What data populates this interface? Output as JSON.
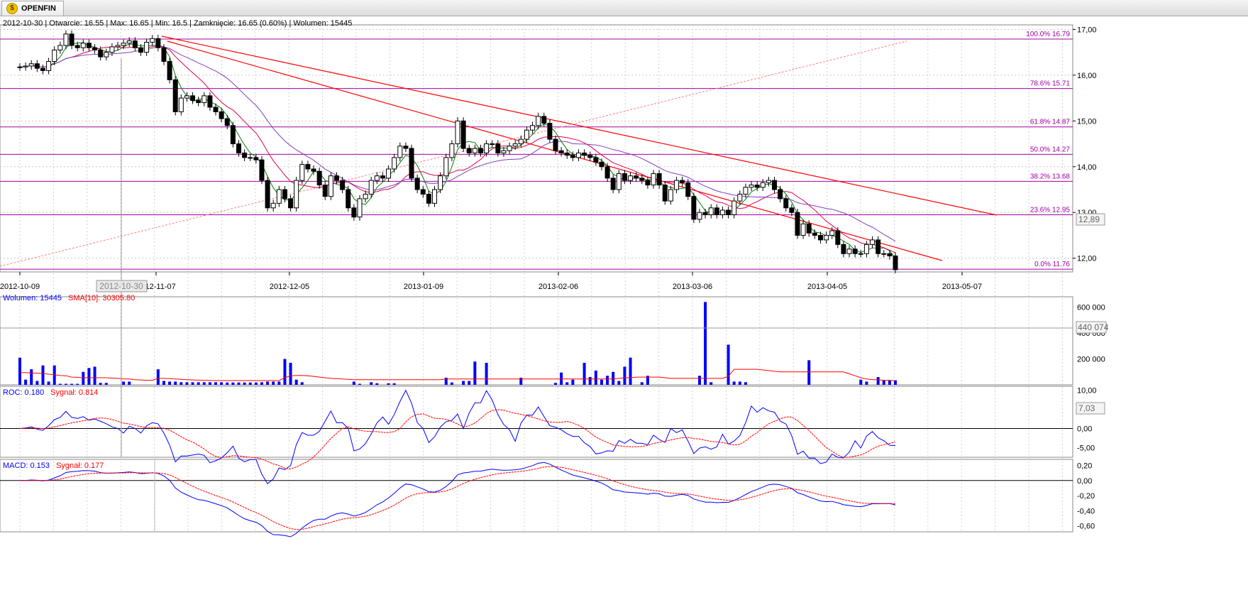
{
  "app": {
    "tab_title": "OPENFIN",
    "logo_icon": "coin-icon"
  },
  "header": {
    "date": "2012-10-30",
    "open": "Otwarcie: 16.55",
    "max": "Max: 16.65",
    "min": "Min: 16.5",
    "close": "Zamknięcie: 16.65 (0.60%)",
    "volume": "Wolumen: 15445"
  },
  "crosshair": {
    "x_label": "2012-10-30"
  },
  "colors": {
    "fib": "#a000a0",
    "trend": "#ff0000",
    "sma_short": "#008000",
    "sma_mid": "#e0004e",
    "sma_long": "#8040c0",
    "volume": "#0000ff",
    "volume_sma": "#ff0000",
    "roc": "#0000ff",
    "macd": "#0000ff",
    "signal": "#ff0000"
  },
  "chart_data": [
    {
      "type": "candlestick",
      "panel": "price",
      "ylim": [
        11.7,
        17.1
      ],
      "y_ticks": [
        "17,00",
        "16,00",
        "15,00",
        "14,00",
        "13,00",
        "12,00"
      ],
      "last_value_label": "12,89",
      "x_ticks": [
        "2012-10-09",
        "2012-11-07",
        "2012-12-05",
        "2013-01-09",
        "2013-02-06",
        "2013-03-06",
        "2013-04-05",
        "2013-05-07"
      ],
      "fibonacci": [
        {
          "label": "100.0% 16.79",
          "value": 16.79
        },
        {
          "label": "78.6% 15.71",
          "value": 15.71
        },
        {
          "label": "61.8% 14.87",
          "value": 14.87
        },
        {
          "label": "50.0% 14.27",
          "value": 14.27
        },
        {
          "label": "38.2% 13.68",
          "value": 13.68
        },
        {
          "label": "23.6% 12.95",
          "value": 12.95
        },
        {
          "label": "0.0% 11.76",
          "value": 11.76
        }
      ],
      "close": [
        16.18,
        16.2,
        16.25,
        16.15,
        16.1,
        16.3,
        16.55,
        16.65,
        16.9,
        16.65,
        16.6,
        16.7,
        16.6,
        16.55,
        16.4,
        16.5,
        16.62,
        16.65,
        16.7,
        16.75,
        16.6,
        16.5,
        16.72,
        16.8,
        16.6,
        16.3,
        15.9,
        15.2,
        15.5,
        15.55,
        15.45,
        15.4,
        15.55,
        15.3,
        15.2,
        15.05,
        14.9,
        14.5,
        14.3,
        14.2,
        14.2,
        14.15,
        13.7,
        13.1,
        13.2,
        13.5,
        13.3,
        13.1,
        13.7,
        14.05,
        13.95,
        13.9,
        13.6,
        13.35,
        13.8,
        13.7,
        13.5,
        13.1,
        12.9,
        13.3,
        13.4,
        13.7,
        13.8,
        13.75,
        13.95,
        14.2,
        14.45,
        14.4,
        13.75,
        13.5,
        13.4,
        13.2,
        13.5,
        13.8,
        14.2,
        14.5,
        15.0,
        14.4,
        14.3,
        14.4,
        14.3,
        14.5,
        14.5,
        14.3,
        14.35,
        14.45,
        14.5,
        14.6,
        14.8,
        14.9,
        15.1,
        14.95,
        14.6,
        14.35,
        14.3,
        14.25,
        14.2,
        14.3,
        14.25,
        14.2,
        14.1,
        14.0,
        13.75,
        13.5,
        13.85,
        13.7,
        13.8,
        13.75,
        13.7,
        13.6,
        13.85,
        13.6,
        13.25,
        13.5,
        13.7,
        13.65,
        13.35,
        12.85,
        13.0,
        12.95,
        13.1,
        12.95,
        13.05,
        12.95,
        13.25,
        13.4,
        13.55,
        13.6,
        13.55,
        13.65,
        13.7,
        13.5,
        13.3,
        13.1,
        13.0,
        12.5,
        12.75,
        12.55,
        12.5,
        12.4,
        12.5,
        12.6,
        12.3,
        12.1,
        12.2,
        12.1,
        12.1,
        12.3,
        12.4,
        12.1,
        12.1,
        12.05,
        11.75
      ]
    },
    {
      "type": "bar",
      "panel": "volume",
      "label": "Wolumen: 15445",
      "sma_label": "SMA[10]: 30305.80",
      "ylim": [
        0,
        680000
      ],
      "y_ticks": [
        "600 000",
        "400 000",
        "200 000"
      ],
      "last_value_label": "440 074",
      "values": [
        210000,
        40000,
        120000,
        30000,
        150000,
        25000,
        150000,
        8000,
        8000,
        8000,
        8000,
        100000,
        130000,
        140000,
        15000,
        15000,
        0,
        0,
        25000,
        25000,
        0,
        0,
        0,
        0,
        120000,
        30000,
        25000,
        25000,
        20000,
        20000,
        20000,
        20000,
        20000,
        20000,
        20000,
        20000,
        18000,
        18000,
        18000,
        18000,
        18000,
        18000,
        20000,
        25000,
        25000,
        25000,
        200000,
        170000,
        40000,
        20000,
        0,
        0,
        0,
        0,
        0,
        0,
        0,
        0,
        25000,
        8000,
        0,
        20000,
        12000,
        0,
        12000,
        12000,
        0,
        0,
        0,
        0,
        0,
        0,
        0,
        0,
        55000,
        18000,
        0,
        30000,
        30000,
        180000,
        0,
        170000,
        0,
        0,
        0,
        0,
        0,
        55000,
        0,
        0,
        0,
        0,
        0,
        15000,
        95000,
        20000,
        40000,
        0,
        170000,
        60000,
        110000,
        40000,
        70000,
        100000,
        30000,
        140000,
        210000,
        0,
        20000,
        70000,
        0,
        0,
        0,
        0,
        0,
        0,
        0,
        0,
        70000,
        640000,
        20000,
        0,
        0,
        310000,
        25000,
        25000,
        20000,
        0,
        0,
        0,
        0,
        0,
        0,
        0,
        0,
        0,
        0,
        190000,
        0,
        0,
        0,
        0,
        0,
        0,
        0,
        0,
        40000,
        25000,
        0,
        60000,
        35000,
        35000,
        35000,
        0,
        0,
        0,
        0,
        0,
        20000,
        0,
        0,
        0,
        0,
        0,
        0,
        0,
        0,
        8000,
        0,
        0,
        0,
        0,
        0,
        0,
        0,
        0,
        0,
        0,
        0
      ],
      "sma": [
        95000,
        95000,
        92000,
        90000,
        88000,
        82000,
        78000,
        72000,
        70000,
        60000,
        58000,
        55000,
        55000,
        55000,
        55000,
        55000,
        52000,
        50000,
        45000,
        45000,
        40000,
        38000,
        35000,
        35000,
        50000,
        50000,
        48000,
        45000,
        42000,
        40000,
        38000,
        36000,
        35000,
        34000,
        33000,
        33000,
        33000,
        33000,
        33000,
        33000,
        33000,
        33000,
        33000,
        33000,
        33000,
        33000,
        55000,
        70000,
        72000,
        73000,
        70000,
        65000,
        60000,
        55000,
        50000,
        48000,
        45000,
        42000,
        40000,
        40000,
        40000,
        40000,
        40000,
        40000,
        40000,
        40000,
        40000,
        40000,
        40000,
        40000,
        40000,
        40000,
        40000,
        40000,
        45000,
        45000,
        45000,
        45000,
        45000,
        45000,
        45000,
        45000,
        45000,
        45000,
        45000,
        45000,
        45000,
        45000,
        45000,
        45000,
        45000,
        45000,
        45000,
        45000,
        45000,
        45000,
        45000,
        45000,
        45000,
        45000,
        45000,
        45000,
        45000,
        45000,
        50000,
        55000,
        55000,
        60000,
        60000,
        60000,
        60000,
        60000,
        55000,
        50000,
        50000,
        50000,
        50000,
        50000,
        50000,
        50000,
        50000,
        50000,
        50000,
        65000,
        120000,
        120000,
        120000,
        120000,
        120000,
        115000,
        110000,
        105000,
        100000,
        100000,
        100000,
        100000,
        100000,
        100000,
        100000,
        100000,
        100000,
        100000,
        100000,
        100000,
        85000,
        70000,
        55000,
        45000,
        40000,
        40000,
        35000,
        35000,
        32000,
        30000,
        28000,
        28000,
        28000,
        25000,
        25000,
        22000,
        22000,
        20000,
        18000,
        16000,
        15000,
        15000,
        15000,
        15000,
        15000,
        15000,
        15000,
        15000,
        15000,
        15000,
        15000,
        15000,
        15000
      ]
    },
    {
      "type": "line",
      "panel": "roc",
      "label": "ROC: 0.180",
      "signal_label": "Sygnał: 0.814",
      "ylim": [
        -7.5,
        11
      ],
      "y_ticks": [
        "10,00",
        "5,00",
        "0,00",
        "-5,00"
      ],
      "last_value_label": "7,03"
    },
    {
      "type": "line",
      "panel": "macd",
      "label": "MACD: 0.153",
      "signal_label": "Sygnał: 0.177",
      "ylim": [
        -0.68,
        0.28
      ],
      "y_ticks": [
        "0,20",
        "0,00",
        "-0,20",
        "-0,40",
        "-0,60"
      ]
    }
  ]
}
